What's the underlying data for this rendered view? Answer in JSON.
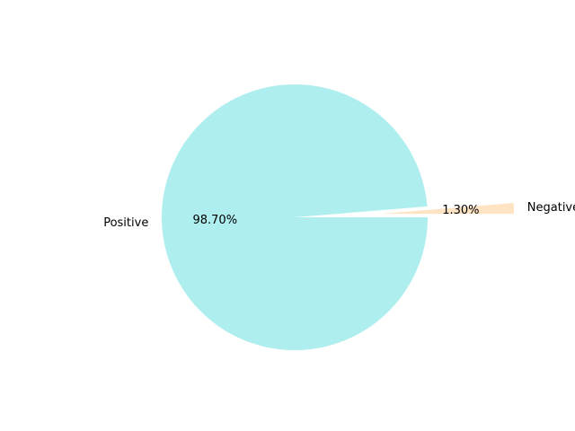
{
  "chart_data": {
    "type": "pie",
    "title": "",
    "start_angle_deg": 0,
    "counterclock": true,
    "slices": [
      {
        "label": "Negative",
        "value": 1.3,
        "pct_label": "1.30%",
        "color": "#ffe4c4",
        "explode": true
      },
      {
        "label": "Positive",
        "value": 98.7,
        "pct_label": "98.70%",
        "color": "#afeeee",
        "explode": false
      }
    ]
  }
}
